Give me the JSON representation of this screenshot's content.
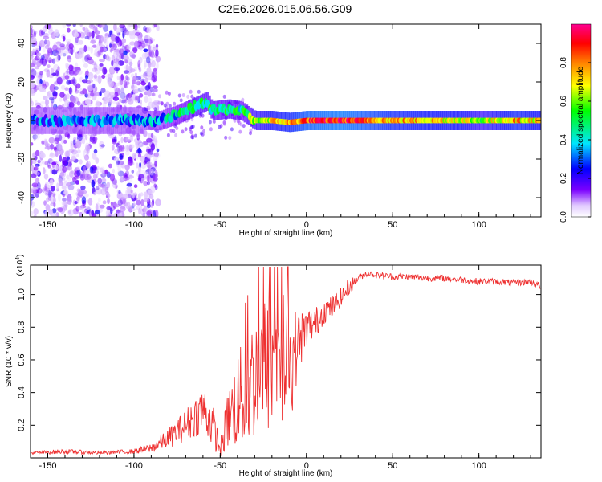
{
  "figure": {
    "title": "C2E6.2026.015.06.56.G09"
  },
  "chart_data": [
    {
      "type": "heatmap",
      "xlabel": "Height of straight line (km)",
      "ylabel": "Frequency (Hz)",
      "xlim": [
        -160,
        136
      ],
      "ylim": [
        -50,
        50
      ],
      "x_ticks": [
        -150,
        -100,
        -50,
        0,
        50,
        100
      ],
      "y_ticks": [
        -40,
        -20,
        0,
        20,
        40
      ],
      "colorbar": {
        "label": "Normalized spectral amplitude",
        "range": [
          0,
          1
        ],
        "ticks": [
          "0.0",
          "0.2",
          "0.4",
          "0.6",
          "0.8"
        ],
        "colormap": [
          "#ffffff",
          "#7b00ff",
          "#0000ff",
          "#00e5ff",
          "#00ff00",
          "#ffff00",
          "#ff8000",
          "#ff0000",
          "#ff0090"
        ]
      },
      "ridge": [
        {
          "x": -160,
          "freq": 0,
          "amp": 0.3
        },
        {
          "x": -130,
          "freq": 0,
          "amp": 0.3
        },
        {
          "x": -110,
          "freq": 0,
          "amp": 0.32
        },
        {
          "x": -95,
          "freq": 0,
          "amp": 0.3
        },
        {
          "x": -85,
          "freq": 0,
          "amp": 0.35
        },
        {
          "x": -75,
          "freq": 3,
          "amp": 0.4
        },
        {
          "x": -65,
          "freq": 7,
          "amp": 0.5
        },
        {
          "x": -58,
          "freq": 10,
          "amp": 0.5
        },
        {
          "x": -55,
          "freq": 5,
          "amp": 0.45
        },
        {
          "x": -45,
          "freq": 6,
          "amp": 0.5
        },
        {
          "x": -38,
          "freq": 5,
          "amp": 0.45
        },
        {
          "x": -30,
          "freq": 0,
          "amp": 0.6
        },
        {
          "x": -20,
          "freq": 0,
          "amp": 0.7
        },
        {
          "x": -10,
          "freq": -1,
          "amp": 0.75
        },
        {
          "x": 0,
          "freq": 0,
          "amp": 0.85
        },
        {
          "x": 20,
          "freq": 0,
          "amp": 0.9
        },
        {
          "x": 50,
          "freq": 0,
          "amp": 0.75
        },
        {
          "x": 90,
          "freq": 0,
          "amp": 0.7
        },
        {
          "x": 100,
          "freq": 0,
          "amp": 0.6
        },
        {
          "x": 120,
          "freq": 0,
          "amp": 0.75
        },
        {
          "x": 136,
          "freq": 0,
          "amp": 0.7
        }
      ],
      "noise_region_x": [
        -160,
        -92
      ]
    },
    {
      "type": "line",
      "xlabel": "Height of straight line (km)",
      "ylabel": "SNR (10 * v/v)",
      "y_multiplier": "(x10",
      "y_multiplier_exp": "4",
      "y_multiplier_close": ")",
      "xlim": [
        -160,
        136
      ],
      "ylim": [
        0,
        1.18
      ],
      "x_ticks": [
        -150,
        -100,
        -50,
        0,
        50,
        100
      ],
      "y_ticks": [
        "0.2",
        "0.4",
        "0.6",
        "0.8",
        "1.0"
      ],
      "series": [
        {
          "color": "#ee3030",
          "x": [
            -160,
            -140,
            -120,
            -100,
            -90,
            -80,
            -70,
            -60,
            -55,
            -50,
            -45,
            -40,
            -35,
            -30,
            -25,
            -20,
            -15,
            -10,
            -5,
            0,
            5,
            10,
            15,
            20,
            25,
            30,
            35,
            40,
            50,
            60,
            70,
            80,
            90,
            100,
            110,
            120,
            130,
            136
          ],
          "y": [
            0.03,
            0.04,
            0.03,
            0.04,
            0.06,
            0.12,
            0.2,
            0.3,
            0.22,
            0.05,
            0.25,
            0.35,
            0.4,
            0.5,
            0.55,
            0.6,
            0.62,
            0.55,
            0.7,
            0.8,
            0.82,
            0.9,
            0.92,
            0.98,
            1.05,
            1.1,
            1.13,
            1.12,
            1.11,
            1.11,
            1.1,
            1.1,
            1.09,
            1.08,
            1.08,
            1.07,
            1.08,
            1.05
          ],
          "noise": [
            0.01,
            0.015,
            0.01,
            0.015,
            0.03,
            0.06,
            0.1,
            0.15,
            0.15,
            0.05,
            0.2,
            0.3,
            0.35,
            0.4,
            0.45,
            0.45,
            0.45,
            0.4,
            0.2,
            0.12,
            0.1,
            0.08,
            0.07,
            0.06,
            0.05,
            0.02,
            0.02,
            0.02,
            0.02,
            0.02,
            0.02,
            0.02,
            0.02,
            0.02,
            0.02,
            0.02,
            0.02,
            0.02
          ]
        }
      ]
    }
  ]
}
